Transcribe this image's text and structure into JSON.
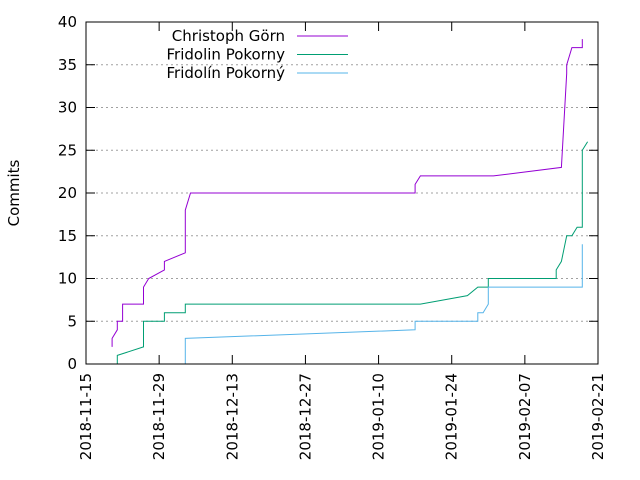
{
  "chart_data": {
    "type": "line",
    "ylabel": "Commits",
    "xlabel": "",
    "ylim": [
      0,
      40
    ],
    "yticks": [
      0,
      5,
      10,
      15,
      20,
      25,
      30,
      35,
      40
    ],
    "xlim": [
      "2018-11-15",
      "2019-02-21"
    ],
    "xticks": [
      "2018-11-15",
      "2018-11-29",
      "2018-12-13",
      "2018-12-27",
      "2019-01-10",
      "2019-01-24",
      "2019-02-07",
      "2019-02-21"
    ],
    "grid": "horizontal",
    "legend_position": "top-left",
    "series": [
      {
        "name": "Christoph Görn",
        "color": "#9400d3",
        "points": [
          [
            "2018-11-20",
            2
          ],
          [
            "2018-11-20",
            3
          ],
          [
            "2018-11-21",
            4
          ],
          [
            "2018-11-21",
            5
          ],
          [
            "2018-11-22",
            5
          ],
          [
            "2018-11-22",
            6
          ],
          [
            "2018-11-22",
            7
          ],
          [
            "2018-11-26",
            7
          ],
          [
            "2018-11-26",
            9
          ],
          [
            "2018-11-27",
            10
          ],
          [
            "2018-11-30",
            11
          ],
          [
            "2018-11-30",
            12
          ],
          [
            "2018-12-04",
            13
          ],
          [
            "2018-12-04",
            18
          ],
          [
            "2018-12-05",
            20
          ],
          [
            "2019-01-17",
            20
          ],
          [
            "2019-01-17",
            21
          ],
          [
            "2019-01-18",
            22
          ],
          [
            "2019-02-01",
            22
          ],
          [
            "2019-02-14",
            23
          ],
          [
            "2019-02-15",
            34
          ],
          [
            "2019-02-15",
            35
          ],
          [
            "2019-02-16",
            37
          ],
          [
            "2019-02-18",
            37
          ],
          [
            "2019-02-18",
            38
          ]
        ]
      },
      {
        "name": "Fridolin Pokorny",
        "color": "#009e73",
        "points": [
          [
            "2018-11-21",
            0
          ],
          [
            "2018-11-21",
            1
          ],
          [
            "2018-11-26",
            2
          ],
          [
            "2018-11-26",
            5
          ],
          [
            "2018-11-30",
            5
          ],
          [
            "2018-11-30",
            6
          ],
          [
            "2018-12-04",
            6
          ],
          [
            "2018-12-04",
            7
          ],
          [
            "2019-01-18",
            7
          ],
          [
            "2019-01-27",
            8
          ],
          [
            "2019-01-29",
            9
          ],
          [
            "2019-01-31",
            9
          ],
          [
            "2019-01-31",
            10
          ],
          [
            "2019-02-13",
            10
          ],
          [
            "2019-02-13",
            11
          ],
          [
            "2019-02-14",
            12
          ],
          [
            "2019-02-15",
            15
          ],
          [
            "2019-02-16",
            15
          ],
          [
            "2019-02-17",
            16
          ],
          [
            "2019-02-18",
            16
          ],
          [
            "2019-02-18",
            18
          ],
          [
            "2019-02-18",
            25
          ],
          [
            "2019-02-19",
            26
          ]
        ]
      },
      {
        "name": "Fridolín Pokorný",
        "color": "#56b4e9",
        "points": [
          [
            "2018-12-04",
            0
          ],
          [
            "2018-12-04",
            3
          ],
          [
            "2019-01-17",
            4
          ],
          [
            "2019-01-17",
            5
          ],
          [
            "2019-01-29",
            5
          ],
          [
            "2019-01-29",
            6
          ],
          [
            "2019-01-30",
            6
          ],
          [
            "2019-01-31",
            7
          ],
          [
            "2019-01-31",
            9
          ],
          [
            "2019-02-18",
            9
          ],
          [
            "2019-02-18",
            14
          ]
        ]
      }
    ]
  }
}
